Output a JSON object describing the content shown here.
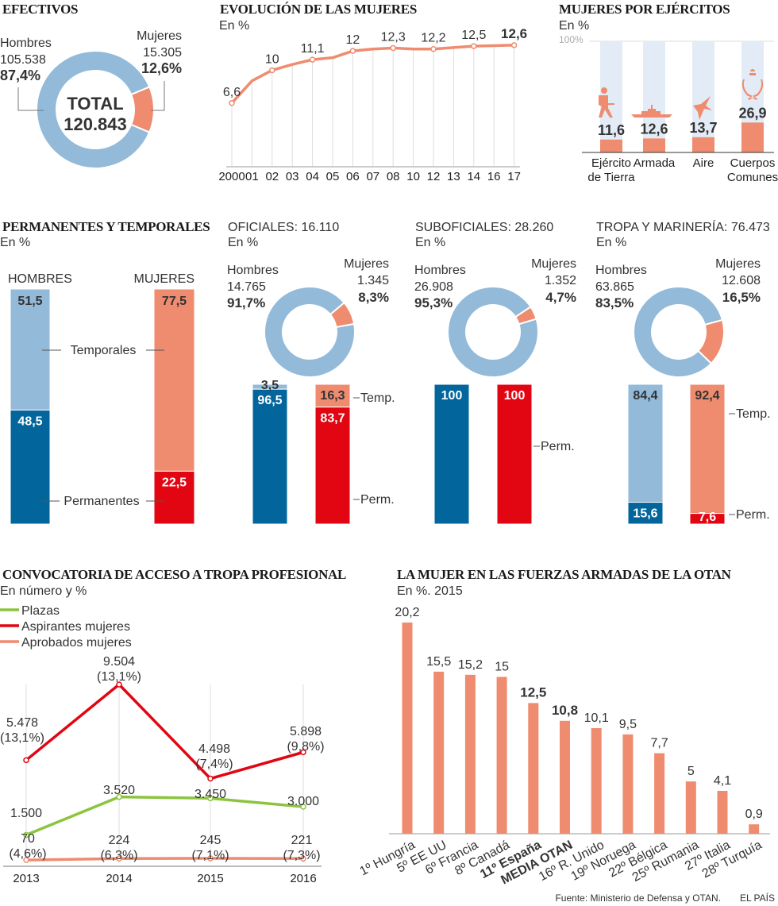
{
  "colors": {
    "men_light": "#93bad9",
    "men_dark": "#02669d",
    "women_light": "#ef8b6f",
    "women_dark": "#e20612",
    "green": "#8cc43f",
    "track": "#e3ecf6",
    "grid": "#dddddd",
    "axis": "#bbbbbb"
  },
  "footer": {
    "source": "Fuente: Ministerio de Defensa y OTAN.",
    "brand": "EL PAÍS"
  },
  "chart_data": [
    {
      "id": "efectivos",
      "type": "pie",
      "title": "EFECTIVOS",
      "center_label": "TOTAL",
      "center_value": "120.843",
      "slices": [
        {
          "name": "Hombres",
          "count": "105.538",
          "pct_label": "87,4%",
          "value": 87.4
        },
        {
          "name": "Mujeres",
          "count": "15.305",
          "pct_label": "12,6%",
          "value": 12.6
        }
      ]
    },
    {
      "id": "evolucion",
      "type": "line",
      "title": "EVOLUCIÓN DE LAS MUJERES",
      "subtitle": "En %",
      "categories": [
        "2000",
        "01",
        "02",
        "03",
        "04",
        "05",
        "06",
        "07",
        "08",
        "10",
        "12",
        "13",
        "14",
        "16",
        "17"
      ],
      "values": [
        6.6,
        8.9,
        10,
        10.6,
        11.1,
        11.3,
        12,
        12.2,
        12.3,
        12.2,
        12.2,
        12.35,
        12.5,
        12.55,
        12.6
      ],
      "labeled_indices": [
        0,
        2,
        4,
        6,
        8,
        10,
        12,
        14
      ],
      "value_labels": [
        "6,6",
        "",
        "10",
        "",
        "11,1",
        "",
        "12",
        "",
        "12,3",
        "",
        "12,2",
        "",
        "12,5",
        "",
        "12,6"
      ],
      "ylim": [
        0,
        13
      ]
    },
    {
      "id": "ejercitos",
      "type": "bar",
      "title": "MUJERES POR EJÉRCITOS",
      "subtitle": "En %",
      "top_label": "100%",
      "categories": [
        [
          "Ejército",
          "de Tierra"
        ],
        [
          "Armada"
        ],
        [
          "Aire"
        ],
        [
          "Cuerpos",
          "Comunes"
        ]
      ],
      "icons": [
        "soldier-icon",
        "ship-icon",
        "jet-icon",
        "crown-laurel-icon"
      ],
      "values": [
        11.6,
        12.6,
        13.7,
        26.9
      ],
      "value_labels": [
        "11,6",
        "12,6",
        "13,7",
        "26,9"
      ],
      "ylim": [
        0,
        100
      ]
    },
    {
      "id": "perm_temp",
      "type": "bar",
      "title": "PERMANENTES Y TEMPORALES",
      "subtitle": "En %",
      "categories": [
        "HOMBRES",
        "MUJERES"
      ],
      "series": [
        {
          "name": "Permanentes",
          "values": [
            48.5,
            22.5
          ],
          "labels": [
            "48,5",
            "22,5"
          ]
        },
        {
          "name": "Temporales",
          "values": [
            51.5,
            77.5
          ],
          "labels": [
            "51,5",
            "77,5"
          ]
        }
      ]
    },
    {
      "id": "oficiales",
      "type": "pie",
      "title": "OFICIALES: 16.110",
      "subtitle": "En %",
      "slices": [
        {
          "name": "Hombres",
          "count": "14.765",
          "pct_label": "91,7%",
          "value": 91.7
        },
        {
          "name": "Mujeres",
          "count": "1.345",
          "pct_label": "8,3%",
          "value": 8.3
        }
      ],
      "stack": {
        "men": {
          "perm": 96.5,
          "temp": 3.5,
          "perm_label": "96,5",
          "temp_label": "3,5"
        },
        "women": {
          "perm": 83.7,
          "temp": 16.3,
          "perm_label": "83,7",
          "temp_label": "16,3"
        },
        "temp_tag": "Temp.",
        "perm_tag": "Perm."
      }
    },
    {
      "id": "suboficiales",
      "type": "pie",
      "title": "SUBOFICIALES: 28.260",
      "subtitle": "En %",
      "slices": [
        {
          "name": "Hombres",
          "count": "26.908",
          "pct_label": "95,3%",
          "value": 95.3
        },
        {
          "name": "Mujeres",
          "count": "1.352",
          "pct_label": "4,7%",
          "value": 4.7
        }
      ],
      "stack": {
        "men": {
          "perm": 100,
          "temp": 0,
          "perm_label": "100",
          "temp_label": ""
        },
        "women": {
          "perm": 100,
          "temp": 0,
          "perm_label": "100",
          "temp_label": ""
        },
        "temp_tag": "",
        "perm_tag": "Perm."
      }
    },
    {
      "id": "tropa",
      "type": "pie",
      "title": "TROPA Y MARINERÍA: 76.473",
      "subtitle": "En %",
      "slices": [
        {
          "name": "Hombres",
          "count": "63.865",
          "pct_label": "83,5%",
          "value": 83.5
        },
        {
          "name": "Mujeres",
          "count": "12.608",
          "pct_label": "16,5%",
          "value": 16.5
        }
      ],
      "stack": {
        "men": {
          "perm": 15.6,
          "temp": 84.4,
          "perm_label": "15,6",
          "temp_label": "84,4"
        },
        "women": {
          "perm": 7.6,
          "temp": 92.4,
          "perm_label": "7,6",
          "temp_label": "92,4"
        },
        "temp_tag": "Temp.",
        "perm_tag": "Perm."
      }
    },
    {
      "id": "convocatoria",
      "type": "line",
      "title": "CONVOCATORIA DE ACCESO A TROPA PROFESIONAL",
      "subtitle": "En número y %",
      "x": [
        "2013",
        "2014",
        "2015",
        "2016"
      ],
      "series": [
        {
          "name": "Plazas",
          "color": "green",
          "values": [
            1500,
            3520,
            3450,
            3000
          ],
          "labels": [
            [
              "1.500"
            ],
            [
              "3.520"
            ],
            [
              "3.450"
            ],
            [
              "3.000"
            ]
          ]
        },
        {
          "name": "Aspirantes mujeres",
          "color": "women_dark",
          "values": [
            5478,
            9504,
            4498,
            5898
          ],
          "labels": [
            [
              "5.478",
              "(13,1%)"
            ],
            [
              "9.504",
              "(13,1%)"
            ],
            [
              "4.498",
              "(7,4%)"
            ],
            [
              "5.898",
              "(9,8%)"
            ]
          ]
        },
        {
          "name": "Aprobados mujeres",
          "color": "women_light",
          "values": [
            70,
            224,
            245,
            221
          ],
          "labels": [
            [
              "70",
              "(4,6%)"
            ],
            [
              "224",
              "(6,3%)"
            ],
            [
              "245",
              "(7,1%)"
            ],
            [
              "221",
              "(7,3%)"
            ]
          ]
        }
      ],
      "ylim": [
        0,
        10000
      ]
    },
    {
      "id": "otan",
      "type": "bar",
      "title": "LA MUJER EN LAS FUERZAS ARMADAS DE LA OTAN",
      "subtitle": "En %. 2015",
      "categories": [
        "1º  Hungría",
        "5º EE UU",
        "6º Francia",
        "8º Canadá",
        "11º España",
        "MEDIA OTAN",
        "16º R. Unido",
        "19º Noruega",
        "22º Bélgica",
        "25º Rumania",
        "27º Italia",
        "28º Turquía"
      ],
      "bold": [
        false,
        false,
        false,
        false,
        true,
        true,
        false,
        false,
        false,
        false,
        false,
        false
      ],
      "values": [
        20.2,
        15.5,
        15.2,
        15,
        12.5,
        10.8,
        10.1,
        9.5,
        7.7,
        5,
        4.1,
        0.9
      ],
      "value_labels": [
        "20,2",
        "15,5",
        "15,2",
        "15",
        "12,5",
        "10,8",
        "10,1",
        "9,5",
        "7,7",
        "5",
        "4,1",
        "0,9"
      ],
      "ylim": [
        0,
        20.2
      ]
    }
  ]
}
